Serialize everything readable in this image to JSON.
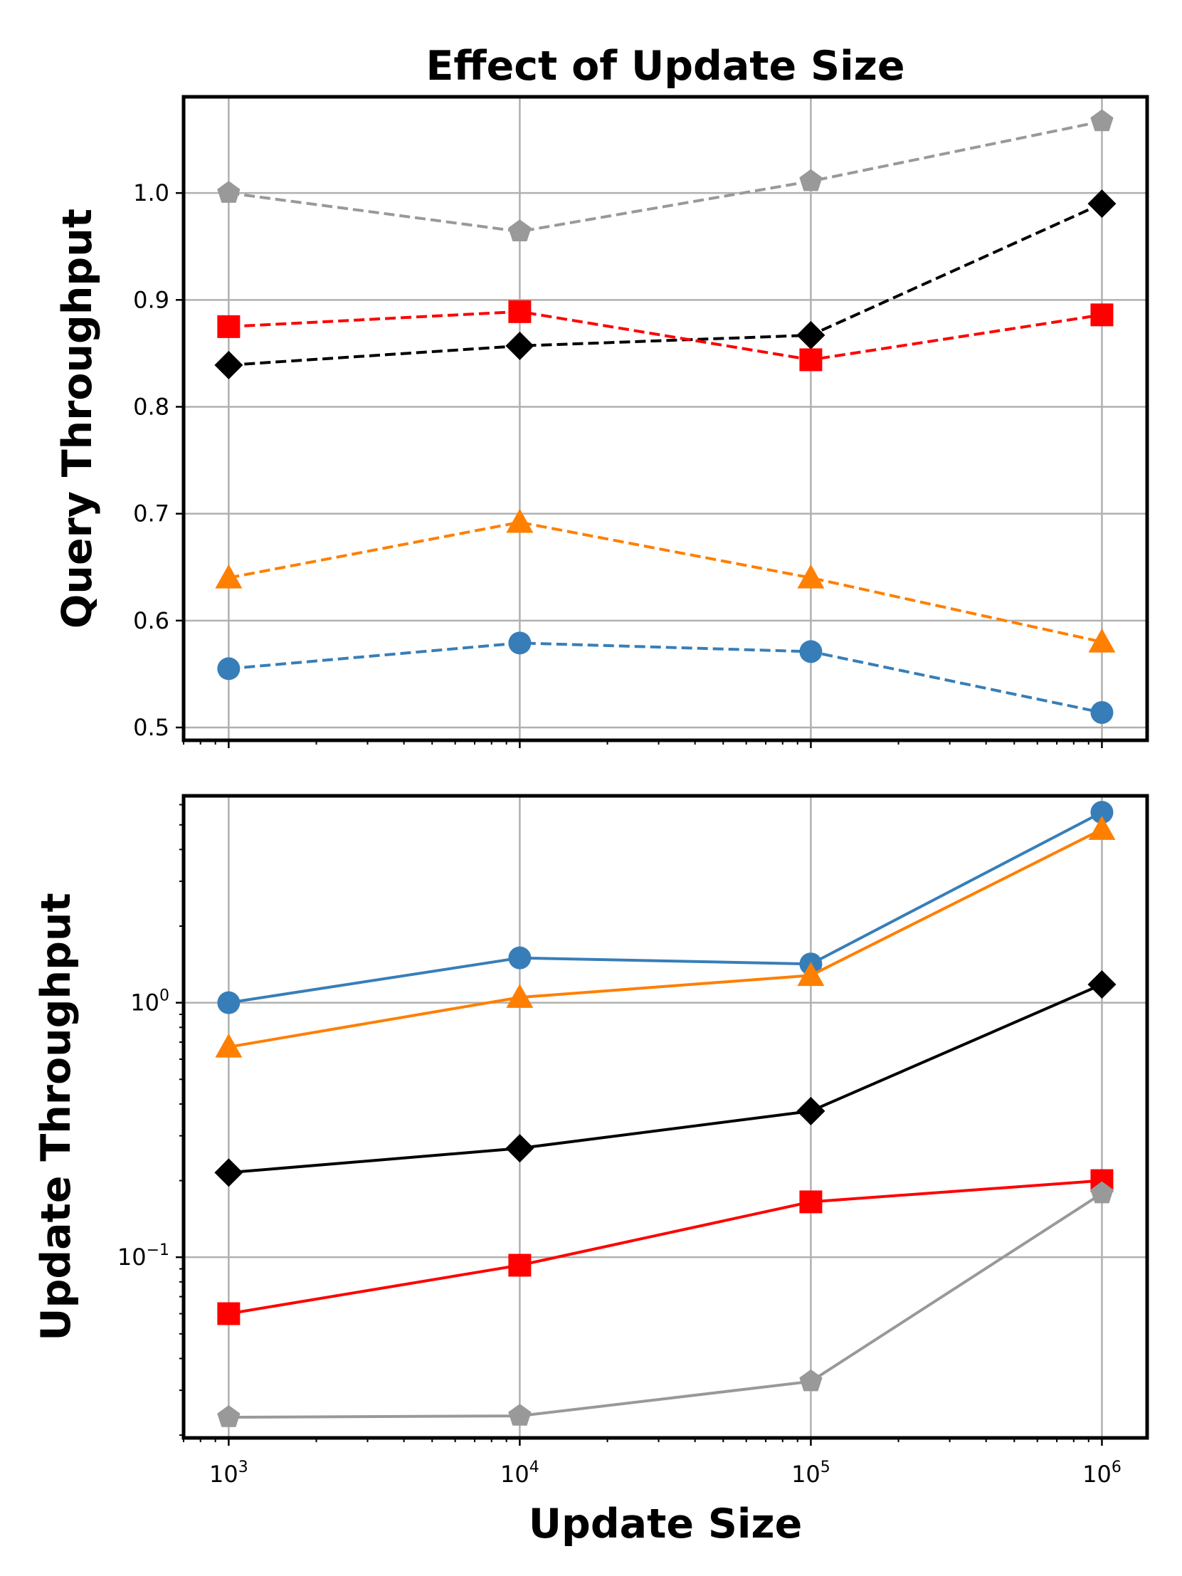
{
  "chart_data": [
    {
      "type": "line",
      "title": "Effect of Update Size",
      "xlabel": "",
      "ylabel": "Query Throughput",
      "xscale": "log",
      "yscale": "linear",
      "x": [
        1000,
        10000,
        100000,
        1000000
      ],
      "xlim": [
        700,
        1430000
      ],
      "ylim": [
        0.488,
        1.09
      ],
      "yticks": [
        0.5,
        0.6,
        0.7,
        0.8,
        0.9,
        1.0
      ],
      "ytick_labels": [
        "0.5",
        "0.6",
        "0.7",
        "0.8",
        "0.9",
        "1.0"
      ],
      "grid": true,
      "linestyle": "dashed",
      "series": [
        {
          "name": "gray-pentagon",
          "color": "#999999",
          "marker": "pentagon",
          "values": [
            1.0,
            0.964,
            1.011,
            1.067
          ]
        },
        {
          "name": "black-diamond",
          "color": "#000000",
          "marker": "diamond",
          "values": [
            0.839,
            0.857,
            0.867,
            0.99
          ]
        },
        {
          "name": "red-square",
          "color": "#ff0000",
          "marker": "square",
          "values": [
            0.875,
            0.889,
            0.844,
            0.886
          ]
        },
        {
          "name": "orange-triangle",
          "color": "#ff7f00",
          "marker": "triangle",
          "values": [
            0.64,
            0.692,
            0.64,
            0.58
          ]
        },
        {
          "name": "blue-circle",
          "color": "#377eb8",
          "marker": "circle",
          "values": [
            0.555,
            0.579,
            0.571,
            0.514
          ]
        }
      ]
    },
    {
      "type": "line",
      "title": "",
      "xlabel": "Update Size",
      "ylabel": "Update Throughput",
      "xscale": "log",
      "yscale": "log",
      "x": [
        1000,
        10000,
        100000,
        1000000
      ],
      "xlim": [
        700,
        1430000
      ],
      "ylim": [
        0.0195,
        6.5
      ],
      "xticks": [
        1000,
        10000,
        100000,
        1000000
      ],
      "xtick_labels": [
        {
          "base": "10",
          "exp": "3"
        },
        {
          "base": "10",
          "exp": "4"
        },
        {
          "base": "10",
          "exp": "5"
        },
        {
          "base": "10",
          "exp": "6"
        }
      ],
      "yticks": [
        0.1,
        1.0
      ],
      "ytick_labels": [
        {
          "base": "10",
          "exp": "−1"
        },
        {
          "base": "10",
          "exp": "0"
        }
      ],
      "grid": true,
      "linestyle": "solid",
      "series": [
        {
          "name": "blue-circle",
          "color": "#377eb8",
          "marker": "circle",
          "values": [
            1.0,
            1.5,
            1.42,
            5.6
          ]
        },
        {
          "name": "orange-triangle",
          "color": "#ff7f00",
          "marker": "triangle",
          "values": [
            0.67,
            1.05,
            1.28,
            4.8
          ]
        },
        {
          "name": "black-diamond",
          "color": "#000000",
          "marker": "diamond",
          "values": [
            0.215,
            0.268,
            0.375,
            1.18
          ]
        },
        {
          "name": "red-square",
          "color": "#ff0000",
          "marker": "square",
          "values": [
            0.06,
            0.093,
            0.165,
            0.2
          ]
        },
        {
          "name": "gray-pentagon",
          "color": "#999999",
          "marker": "pentagon",
          "values": [
            0.0235,
            0.0238,
            0.0325,
            0.178
          ]
        }
      ]
    }
  ]
}
